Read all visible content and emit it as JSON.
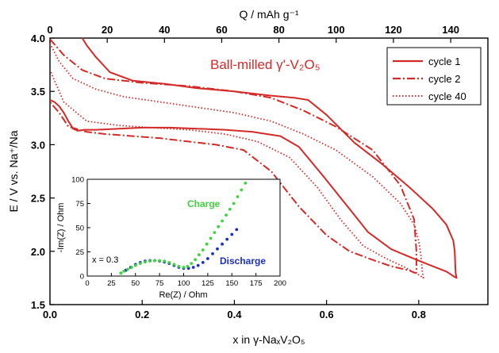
{
  "chart_data": [
    {
      "type": "line",
      "title": "Ball-milled γ'-V₂O₅",
      "xlabel": "x in γ-NaₓV₂O₅",
      "ylabel": "E / V vs. Na⁺/Na",
      "top_xlabel": "Q / mAh g⁻¹",
      "xlim": [
        0.0,
        0.95
      ],
      "ylim": [
        1.5,
        4.0
      ],
      "top_xlim": [
        0,
        153
      ],
      "xticks": [
        "0.0",
        "0.2",
        "0.4",
        "0.6",
        "0.8"
      ],
      "yticks": [
        "1.5",
        "2.0",
        "2.5",
        "3.0",
        "3.5",
        "4.0"
      ],
      "top_xticks": [
        "0",
        "20",
        "40",
        "60",
        "80",
        "100",
        "120",
        "140"
      ],
      "legend_position": "top-right",
      "series": [
        {
          "name": "cycle 1",
          "dash": "solid",
          "color": "#d42a27",
          "x": [
            0.07,
            0.08,
            0.1,
            0.13,
            0.18,
            0.25,
            0.32,
            0.4,
            0.48,
            0.53,
            0.56,
            0.6,
            0.66,
            0.72,
            0.78,
            0.83,
            0.86,
            0.875,
            0.878,
            0.879,
            0.88,
            0.882,
            0.878,
            0.86,
            0.83,
            0.79,
            0.74,
            0.69,
            0.64,
            0.59,
            0.54,
            0.5,
            0.44,
            0.38,
            0.32,
            0.26,
            0.2,
            0.15,
            0.1,
            0.075,
            0.06,
            0.05,
            0.04,
            0.03,
            0.02,
            0.01,
            0.0
          ],
          "y": [
            4.0,
            3.93,
            3.82,
            3.68,
            3.6,
            3.57,
            3.53,
            3.5,
            3.46,
            3.44,
            3.42,
            3.28,
            3.02,
            2.82,
            2.6,
            2.4,
            2.25,
            2.1,
            2.0,
            1.9,
            1.8,
            1.75,
            1.76,
            1.81,
            1.86,
            1.93,
            2.02,
            2.18,
            2.45,
            2.72,
            2.98,
            3.08,
            3.12,
            3.14,
            3.15,
            3.16,
            3.16,
            3.15,
            3.14,
            3.14,
            3.13,
            3.15,
            3.22,
            3.3,
            3.36,
            3.4,
            3.42
          ]
        },
        {
          "name": "cycle 2",
          "dash": "dashdot",
          "color": "#d42a27",
          "x": [
            0.0,
            0.03,
            0.07,
            0.12,
            0.2,
            0.3,
            0.4,
            0.48,
            0.55,
            0.62,
            0.7,
            0.76,
            0.79,
            0.795,
            0.795,
            0.79,
            0.78,
            0.74,
            0.7,
            0.65,
            0.6,
            0.54,
            0.48,
            0.42,
            0.36,
            0.3,
            0.24,
            0.18,
            0.12,
            0.08,
            0.04,
            0.02,
            0.0
          ],
          "y": [
            3.99,
            3.84,
            3.7,
            3.62,
            3.58,
            3.55,
            3.5,
            3.44,
            3.32,
            3.17,
            2.95,
            2.62,
            2.3,
            2.0,
            1.8,
            1.8,
            1.82,
            1.86,
            1.92,
            2.0,
            2.15,
            2.42,
            2.75,
            2.95,
            3.0,
            3.03,
            3.06,
            3.08,
            3.1,
            3.12,
            3.17,
            3.3,
            3.4
          ]
        },
        {
          "name": "cycle 40",
          "dash": "dotted",
          "color": "#d42a27",
          "x": [
            0.0,
            0.02,
            0.05,
            0.1,
            0.16,
            0.24,
            0.32,
            0.4,
            0.48,
            0.55,
            0.62,
            0.7,
            0.76,
            0.79,
            0.8,
            0.805,
            0.808,
            0.81,
            0.8,
            0.77,
            0.73,
            0.68,
            0.63,
            0.58,
            0.52,
            0.45,
            0.38,
            0.3,
            0.22,
            0.15,
            0.08,
            0.03,
            0.0
          ],
          "y": [
            3.95,
            3.78,
            3.62,
            3.52,
            3.45,
            3.4,
            3.35,
            3.3,
            3.22,
            3.1,
            2.95,
            2.7,
            2.45,
            2.25,
            2.1,
            1.95,
            1.8,
            1.75,
            1.78,
            1.85,
            1.93,
            2.05,
            2.3,
            2.6,
            2.88,
            3.03,
            3.1,
            3.14,
            3.16,
            3.18,
            3.22,
            3.4,
            3.7
          ]
        }
      ]
    },
    {
      "type": "scatter",
      "xlabel": "Re(Z) / Ohm",
      "ylabel": "-Im(Z) / Ohm",
      "xlim": [
        0,
        200
      ],
      "ylim": [
        0,
        100
      ],
      "xticks": [
        "0",
        "25",
        "50",
        "75",
        "100",
        "125",
        "150",
        "175",
        "200"
      ],
      "yticks": [
        "0",
        "25",
        "50",
        "75",
        "100"
      ],
      "annotation": "x = 0.3",
      "series": [
        {
          "name": "Charge",
          "color": "#3fd23f",
          "x": [
            35,
            38,
            42,
            46,
            50,
            55,
            60,
            65,
            70,
            75,
            80,
            85,
            90,
            95,
            100,
            104,
            108,
            112,
            116,
            120,
            124,
            128,
            132,
            136,
            140,
            144,
            148,
            152,
            156,
            160,
            164
          ],
          "y": [
            3,
            5,
            7,
            9,
            11,
            13,
            14.5,
            15.5,
            16,
            16,
            15.5,
            14,
            12,
            10,
            9,
            10,
            13,
            17,
            22,
            27,
            33,
            39,
            45,
            51,
            57,
            63,
            69,
            75,
            82,
            89,
            96
          ]
        },
        {
          "name": "Discharge",
          "color": "#1c2fc4",
          "x": [
            35,
            40,
            45,
            50,
            55,
            60,
            65,
            70,
            75,
            80,
            85,
            90,
            95,
            100,
            105,
            110,
            115,
            120,
            125,
            130,
            135,
            140,
            145,
            150,
            155
          ],
          "y": [
            3,
            6,
            9,
            12,
            14,
            15.5,
            16,
            16,
            15.5,
            14.5,
            13,
            11,
            9,
            8,
            8,
            9,
            11,
            14,
            18,
            23,
            28,
            33,
            38,
            43,
            48
          ]
        }
      ]
    }
  ]
}
